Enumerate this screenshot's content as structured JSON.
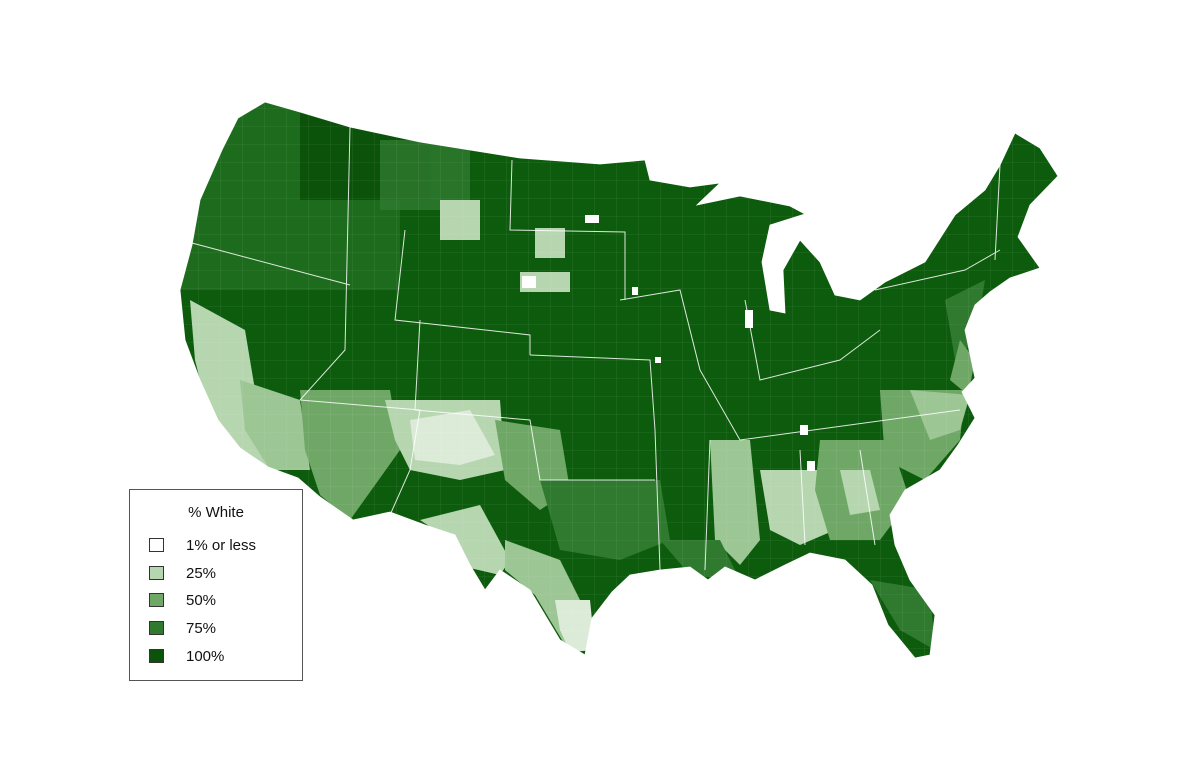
{
  "map": {
    "subject": "Percent White population by county, contiguous United States",
    "fill_default": "#0d5c0d",
    "border_color": "#ffffff"
  },
  "legend": {
    "title": "% White",
    "items": [
      {
        "label": "1% or less",
        "color": "#ffffff"
      },
      {
        "label": "25%",
        "color": "#b6d6b0"
      },
      {
        "label": "50%",
        "color": "#6fa866"
      },
      {
        "label": "75%",
        "color": "#2f7a2f"
      },
      {
        "label": "100%",
        "color": "#0b520b"
      }
    ]
  },
  "regions": [
    {
      "name": "southwest-border",
      "level": 25
    },
    {
      "name": "southern-california",
      "level": 25
    },
    {
      "name": "central-valley",
      "level": 50
    },
    {
      "name": "northern-new-mexico",
      "level": 25
    },
    {
      "name": "arizona-reservations",
      "level": 50
    },
    {
      "name": "south-texas",
      "level": 1
    },
    {
      "name": "mississippi-delta",
      "level": 25
    },
    {
      "name": "alabama-black-belt",
      "level": 25
    },
    {
      "name": "georgia-carolina-piedmont",
      "level": 50
    },
    {
      "name": "eastern-virginia-carolina",
      "level": 50
    },
    {
      "name": "south-dakota-reservations",
      "level": 25
    },
    {
      "name": "montana-reservations",
      "level": 50
    },
    {
      "name": "oklahoma-east",
      "level": 75
    },
    {
      "name": "florida-south",
      "level": 50
    }
  ]
}
